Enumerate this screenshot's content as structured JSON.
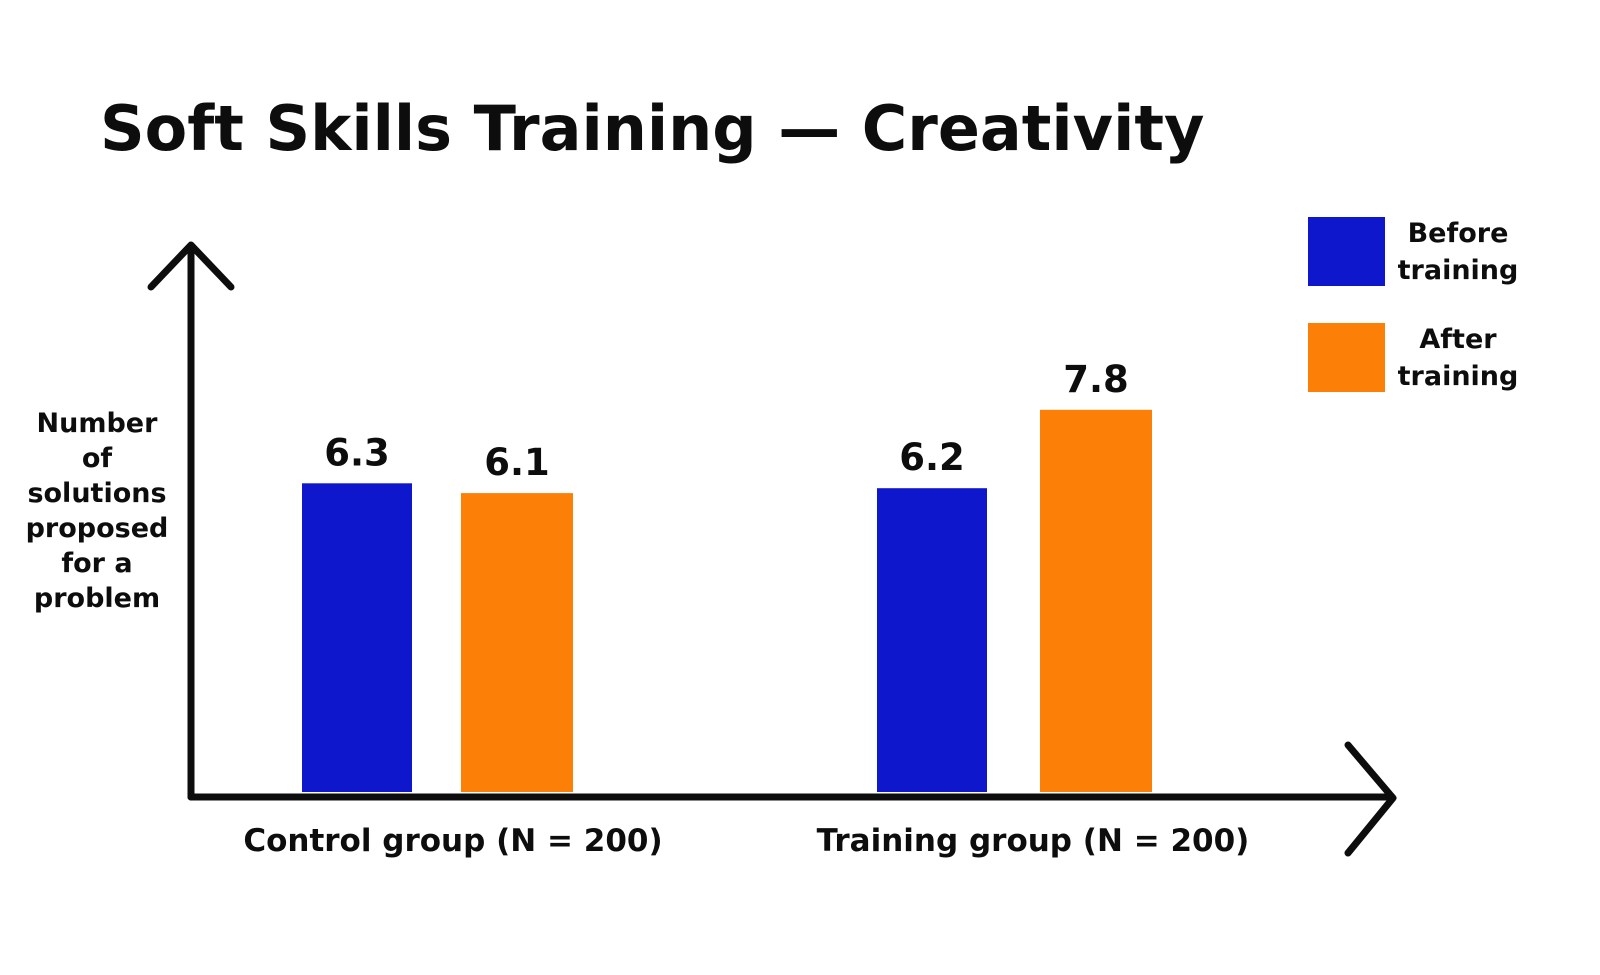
{
  "chart_data": {
    "type": "bar",
    "title": "Soft Skills Training — Creativity",
    "xlabel": "",
    "ylabel": "Number of solutions proposed for a problem",
    "ylabel_lines": [
      "Number",
      "of",
      "solutions",
      "proposed",
      "for a",
      "problem"
    ],
    "categories": [
      "Control group (N = 200)",
      "Training group (N = 200)"
    ],
    "series": [
      {
        "name": "Before training",
        "name_lines": [
          "Before",
          "training"
        ],
        "color": "#0f17cc",
        "values": [
          6.3,
          6.2
        ],
        "labels": [
          "6.3",
          "6.2"
        ]
      },
      {
        "name": "After training",
        "name_lines": [
          "After",
          "training"
        ],
        "color": "#fc8008",
        "values": [
          6.1,
          7.8
        ],
        "labels": [
          "6.1",
          "7.8"
        ]
      }
    ],
    "legend_position": "top-right",
    "grid": false,
    "y_ticks": false
  }
}
